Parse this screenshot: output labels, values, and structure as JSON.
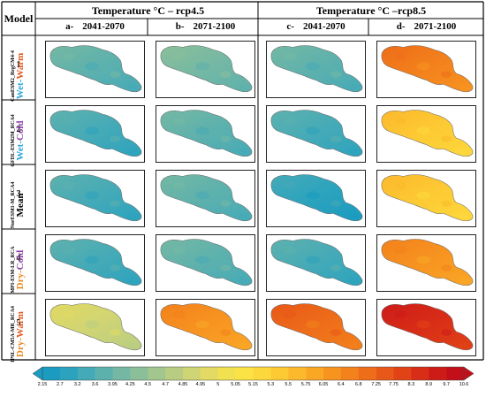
{
  "header": {
    "model_label": "Model",
    "groups": [
      "Temperature °C – rcp4.5",
      "Temperature °C –rcp8.5"
    ],
    "columns": [
      {
        "letter": "a-",
        "period": "2041-2070"
      },
      {
        "letter": "b-",
        "period": "2071-2100"
      },
      {
        "letter": "c-",
        "period": "2041-2070"
      },
      {
        "letter": "d-",
        "period": "2071-2100"
      }
    ]
  },
  "rows": [
    {
      "num": "1",
      "gcm": "CanESM2_RegCM4-4",
      "cls": [
        {
          "t": "Wet-",
          "c": "#2aa7d8"
        },
        {
          "t": "Warm",
          "c": "#e35b23"
        }
      ]
    },
    {
      "num": "2",
      "gcm": "GFDL-ESM2M_RCA4",
      "cls": [
        {
          "t": "Wet-",
          "c": "#2aa7d8"
        },
        {
          "t": "Cold",
          "c": "#8b3fa8"
        }
      ]
    },
    {
      "num": "3",
      "gcm": "NorESM1-M_RCA4",
      "cls": [
        {
          "t": "Mean",
          "c": "#000000"
        }
      ]
    },
    {
      "num": "4",
      "gcm": "MPI-ESM-LR_RCA",
      "cls": [
        {
          "t": "Dry-",
          "c": "#e6891f"
        },
        {
          "t": "Cold",
          "c": "#8b3fa8"
        }
      ]
    },
    {
      "num": "5",
      "gcm": "IPSL-CM5A-MR_RCA4",
      "cls": [
        {
          "t": "Dry-",
          "c": "#e6891f"
        },
        {
          "t": "Warm",
          "c": "#e35b23"
        }
      ]
    }
  ],
  "panel_mean_temperature_c": [
    [
      3.6,
      3.95,
      3.6,
      6.4
    ],
    [
      3.2,
      3.6,
      3.2,
      5.3
    ],
    [
      3.2,
      3.6,
      3.0,
      5.3
    ],
    [
      3.2,
      3.6,
      3.2,
      6.05
    ],
    [
      4.85,
      6.05,
      6.8,
      8.3
    ]
  ],
  "colorbar": {
    "ticks": [
      "2.15",
      "2.7",
      "3.2",
      "3.6",
      "3.95",
      "4.25",
      "4.5",
      "4.7",
      "4.85",
      "4.95",
      "5",
      "5.05",
      "5.15",
      "5.3",
      "5.5",
      "5.75",
      "6.05",
      "6.4",
      "6.8",
      "7.25",
      "7.75",
      "8.3",
      "8.9",
      "9.7",
      "10.6"
    ],
    "colors": [
      "#1a9bbf",
      "#2ca3be",
      "#45aab7",
      "#5db1ad",
      "#74b8a4",
      "#8bbf9a",
      "#a2c68e",
      "#b8cd82",
      "#cfd474",
      "#e2da62",
      "#f1e04f",
      "#fbe245",
      "#fdd83c",
      "#fdca34",
      "#fcb92c",
      "#faa726",
      "#f79420",
      "#f3811c",
      "#ee6d19",
      "#e85818",
      "#e14317",
      "#d82e17",
      "#cd1c18",
      "#c20f19"
    ]
  }
}
